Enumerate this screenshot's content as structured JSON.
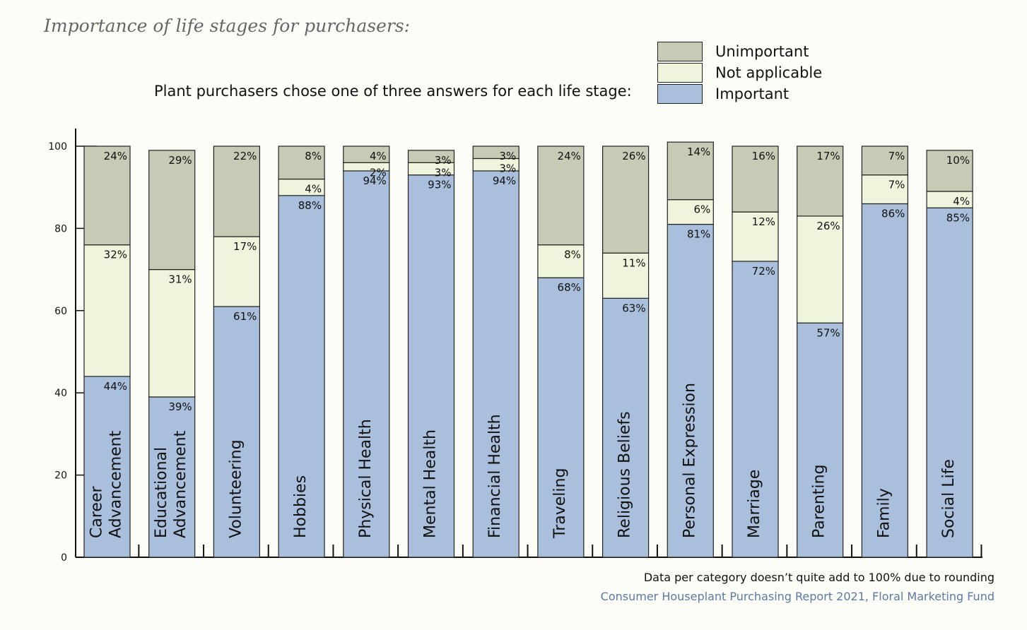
{
  "chart_data": {
    "type": "bar",
    "stacked": true,
    "title": "Importance of life stages for purchasers:",
    "subtitle": "Plant purchasers chose one of three answers for each life stage:",
    "categories": [
      [
        "Career",
        "Advancement"
      ],
      [
        "Educational",
        "Advancement"
      ],
      [
        "Volunteering"
      ],
      [
        "Hobbies"
      ],
      [
        "Physical Health"
      ],
      [
        "Mental Health"
      ],
      [
        "Financial Health"
      ],
      [
        "Traveling"
      ],
      [
        "Religious Beliefs"
      ],
      [
        "Personal Expression"
      ],
      [
        "Marriage"
      ],
      [
        "Parenting"
      ],
      [
        "Family"
      ],
      [
        "Social Life"
      ]
    ],
    "series": [
      {
        "name": "Important",
        "color": "#a9bfdc",
        "values": [
          44,
          39,
          61,
          88,
          94,
          93,
          94,
          68,
          63,
          81,
          72,
          57,
          86,
          85
        ],
        "labels": [
          "44%",
          "39%",
          "61%",
          "88%",
          "94%",
          "93%",
          "94%",
          "68%",
          "63%",
          "81%",
          "72%",
          "57%",
          "86%",
          "85%"
        ]
      },
      {
        "name": "Not applicable",
        "color": "#eef5dc",
        "values": [
          32,
          31,
          17,
          4,
          2,
          3,
          3,
          8,
          11,
          6,
          12,
          26,
          7,
          4
        ],
        "labels": [
          "32%",
          "31%",
          "17%",
          "4%",
          "2%",
          "3%",
          "3%",
          "8%",
          "11%",
          "6%",
          "12%",
          "26%",
          "7%",
          "4%"
        ]
      },
      {
        "name": "Unimportant",
        "color": "#c8cab6",
        "values": [
          24,
          29,
          22,
          8,
          4,
          3,
          3,
          24,
          26,
          14,
          16,
          17,
          7,
          10
        ],
        "labels": [
          "24%",
          "29%",
          "22%",
          "8%",
          "4%",
          "3%",
          "3%",
          "24%",
          "26%",
          "14%",
          "16%",
          "17%",
          "7%",
          "10%"
        ]
      }
    ],
    "legend_order": [
      "Unimportant",
      "Not applicable",
      "Important"
    ],
    "legend_position": "top-right",
    "ylim": [
      0,
      100
    ],
    "yticks": [
      "0",
      "20",
      "40",
      "60",
      "80",
      "100"
    ],
    "xlabel": "",
    "ylabel": "",
    "grid": false
  },
  "note": "Data per category doesn’t quite add to 100% due to rounding",
  "source": "Consumer Houseplant Purchasing Report 2021, Floral Marketing Fund"
}
